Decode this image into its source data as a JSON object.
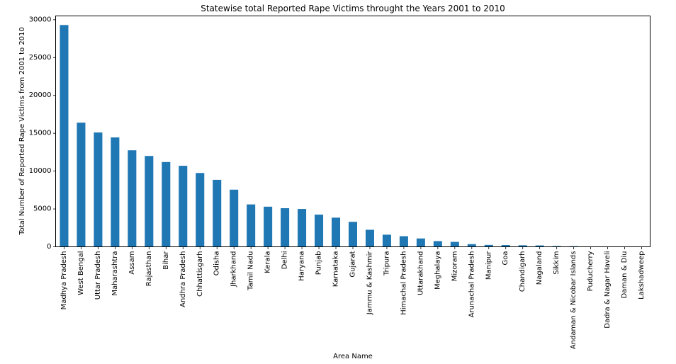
{
  "chart_data": {
    "type": "bar",
    "title": "Statewise total Reported Rape Victims throught the Years 2001 to 2010",
    "xlabel": "Area Name",
    "ylabel": "Total Number of Reported Rape Victims from 2001 to 2010",
    "ylim": [
      0,
      30500
    ],
    "yticks": [
      0,
      5000,
      10000,
      15000,
      20000,
      25000,
      30000
    ],
    "grid": false,
    "bar_color": "#1f77b4",
    "categories": [
      "Madhya Pradesh",
      "West Bengal",
      "Uttar Pradesh",
      "Maharashtra",
      "Assam",
      "Rajasthan",
      "Bihar",
      "Andhra Pradesh",
      "Chhattisgarh",
      "Odisha",
      "Jharkhand",
      "Tamil Nadu",
      "Kerala",
      "Delhi",
      "Haryana",
      "Punjab",
      "Karnataka",
      "Gujarat",
      "Jammu & Kashmir",
      "Tripura",
      "Himachal Pradesh",
      "Uttarakhand",
      "Meghalaya",
      "Mizoram",
      "Arunachal Pradesh",
      "Manipur",
      "Goa",
      "Chandigarh",
      "Nagaland",
      "Sikkim",
      "Andaman & Nicobar Islands",
      "Puducherry",
      "Dadra & Nagar Haveli",
      "Daman & Diu",
      "Lakshadweep"
    ],
    "values": [
      29300,
      16400,
      15100,
      14450,
      12750,
      12000,
      11200,
      10700,
      9750,
      8850,
      7550,
      5600,
      5300,
      5100,
      5000,
      4250,
      3850,
      3300,
      2250,
      1600,
      1400,
      1100,
      750,
      650,
      350,
      250,
      230,
      200,
      180,
      100,
      80,
      25,
      20,
      10,
      5
    ]
  }
}
